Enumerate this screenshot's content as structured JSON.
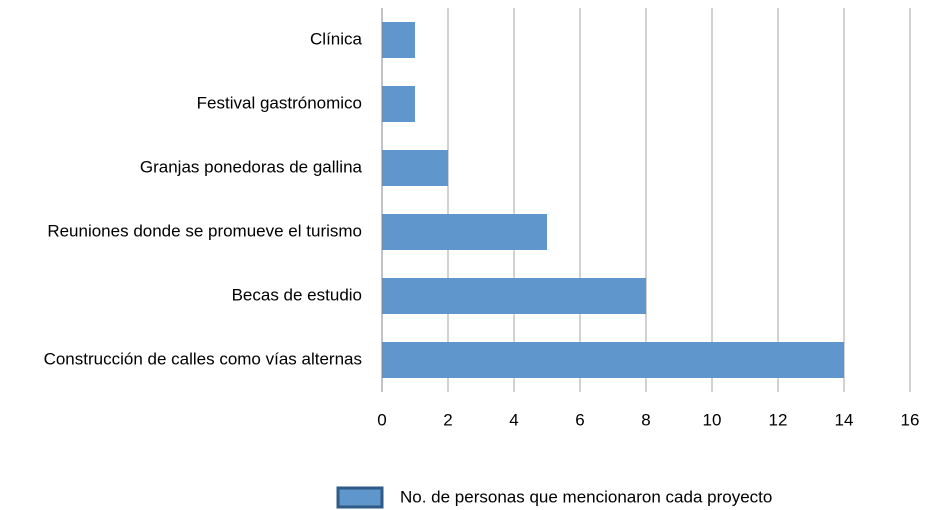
{
  "chart_data": {
    "type": "hbar",
    "categories": [
      "Clínica",
      "Festival gastrónomico",
      "Granjas ponedoras de gallina",
      "Reuniones donde se promueve el turismo",
      "Becas de estudio",
      "Construcción de calles como vías alternas"
    ],
    "series": [
      {
        "name": "No. de personas que mencionaron cada proyecto",
        "color": "#5f96cb",
        "values": [
          1,
          1,
          2,
          5,
          8,
          14
        ]
      }
    ],
    "xlim": [
      0,
      16
    ],
    "xticks": [
      0,
      2,
      4,
      6,
      8,
      10,
      12,
      14,
      16
    ],
    "grid": true,
    "legend": "bottom"
  }
}
